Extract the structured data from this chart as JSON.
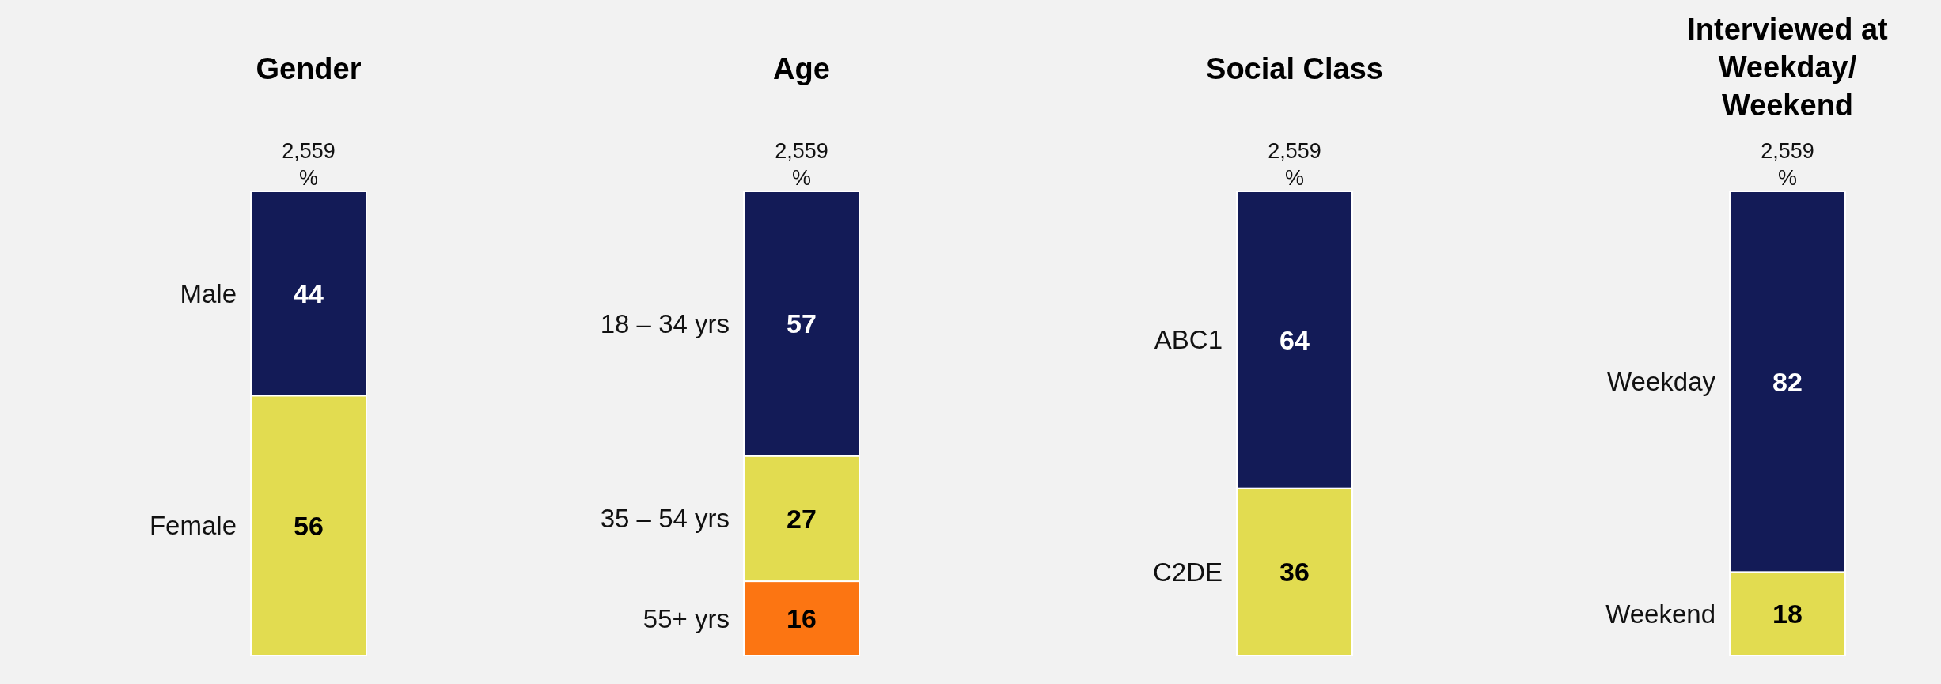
{
  "chart_data": [
    {
      "type": "bar",
      "title": "Gender",
      "annotations": [
        "2,559",
        "%"
      ],
      "categories": [
        null
      ],
      "stacked": true,
      "data_labels": true,
      "series": [
        {
          "name": "Female",
          "color": "#e2dc50",
          "values": [
            56
          ]
        },
        {
          "name": "Male",
          "color": "#131b57",
          "values": [
            44
          ]
        }
      ]
    },
    {
      "type": "bar",
      "title": "Age",
      "annotations": [
        "2,559",
        "%"
      ],
      "categories": [
        null
      ],
      "stacked": true,
      "data_labels": true,
      "series": [
        {
          "name": "55+ yrs",
          "color": "#fc7512",
          "values": [
            16
          ]
        },
        {
          "name": "35 – 54 yrs",
          "color": "#e2dc50",
          "values": [
            27
          ]
        },
        {
          "name": "18 – 34 yrs",
          "color": "#131b57",
          "values": [
            57
          ]
        }
      ]
    },
    {
      "type": "bar",
      "title": "Social Class",
      "annotations": [
        "2,559",
        "%"
      ],
      "categories": [
        null
      ],
      "stacked": true,
      "data_labels": true,
      "series": [
        {
          "name": "C2DE",
          "color": "#e2dc50",
          "values": [
            36
          ]
        },
        {
          "name": "ABC1",
          "color": "#131b57",
          "values": [
            64
          ]
        }
      ]
    },
    {
      "type": "bar",
      "title": "Interviewed at Weekday/ Weekend",
      "annotations": [
        "2,559",
        "%"
      ],
      "categories": [
        null
      ],
      "stacked": true,
      "data_labels": true,
      "series": [
        {
          "name": "Weekend",
          "color": "#e2dc50",
          "values": [
            18
          ]
        },
        {
          "name": "Weekday",
          "color": "#131b57",
          "values": [
            82
          ]
        }
      ]
    }
  ]
}
